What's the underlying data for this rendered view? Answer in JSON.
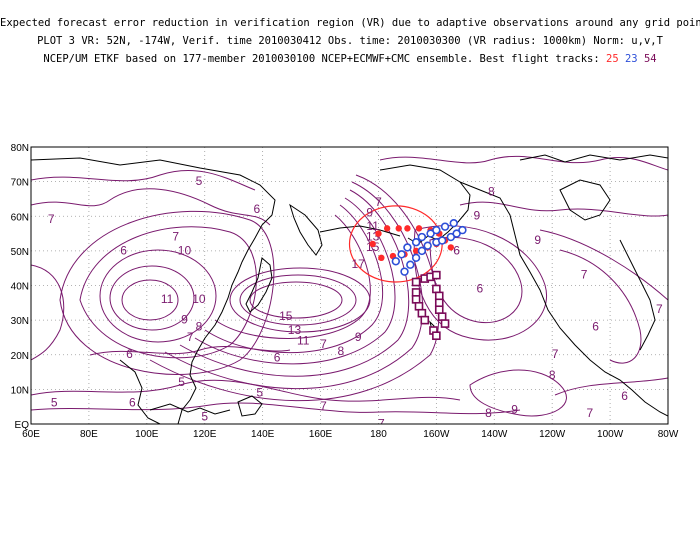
{
  "title": {
    "line1": "Expected forecast error reduction in verification region (VR) due to adaptive observations around any grid point.",
    "line2": "PLOT 3 VR: 52N, -174W, Verif. time 2010030412 Obs. time: 2010030300 (VR radius: 1000km) Norm: u,v,T",
    "line3_prefix": "NCEP/UM ETKF based on 177-member 2010030100 NCEP+ECMWF+CMC ensemble. Best flight tracks:",
    "track_a": "25",
    "track_b": "23",
    "track_c": "54"
  },
  "colors": {
    "contour": "#7a1a6e",
    "track_a": "#ff2a2a",
    "track_b": "#2d4fd8",
    "track_c": "#7a0a58",
    "vr_circle": "#ff2a2a",
    "grid": "#9a9a9a"
  },
  "axes": {
    "lon_labels": [
      "60E",
      "80E",
      "100E",
      "120E",
      "140E",
      "160E",
      "180",
      "160W",
      "140W",
      "120W",
      "100W",
      "80W"
    ],
    "lat_labels": [
      "80N",
      "70N",
      "60N",
      "50N",
      "40N",
      "30N",
      "20N",
      "10N",
      "EQ"
    ]
  },
  "contour_labels": [
    {
      "text": "7",
      "lon": 67,
      "lat": 58
    },
    {
      "text": "5",
      "lon": 118,
      "lat": 69
    },
    {
      "text": "6",
      "lon": 138,
      "lat": 61
    },
    {
      "text": "6",
      "lon": 92,
      "lat": 49
    },
    {
      "text": "7",
      "lon": 110,
      "lat": 53
    },
    {
      "text": "10",
      "lon": 113,
      "lat": 49
    },
    {
      "text": "11",
      "lon": 107,
      "lat": 35
    },
    {
      "text": "10",
      "lon": 118,
      "lat": 35
    },
    {
      "text": "9",
      "lon": 113,
      "lat": 29
    },
    {
      "text": "8",
      "lon": 118,
      "lat": 27
    },
    {
      "text": "7",
      "lon": 115,
      "lat": 24
    },
    {
      "text": "6",
      "lon": 94,
      "lat": 19
    },
    {
      "text": "5",
      "lon": 112,
      "lat": 11
    },
    {
      "text": "5",
      "lon": 68,
      "lat": 5
    },
    {
      "text": "6",
      "lon": 95,
      "lat": 5
    },
    {
      "text": "5",
      "lon": 120,
      "lat": 1
    },
    {
      "text": "5",
      "lon": 139,
      "lat": 8
    },
    {
      "text": "7",
      "lon": 161,
      "lat": 4
    },
    {
      "text": "7",
      "lon": 181,
      "lat": -1
    },
    {
      "text": "6",
      "lon": 145,
      "lat": 18
    },
    {
      "text": "15",
      "lon": 148,
      "lat": 30
    },
    {
      "text": "13",
      "lon": 151,
      "lat": 26
    },
    {
      "text": "11",
      "lon": 154,
      "lat": 23
    },
    {
      "text": "9",
      "lon": 173,
      "lat": 24
    },
    {
      "text": "8",
      "lon": 167,
      "lat": 20
    },
    {
      "text": "7",
      "lon": 161,
      "lat": 22
    },
    {
      "text": "7",
      "lon": 180,
      "lat": 63
    },
    {
      "text": "9",
      "lon": 177,
      "lat": 60
    },
    {
      "text": "11",
      "lon": 178,
      "lat": 56
    },
    {
      "text": "13",
      "lon": 178,
      "lat": 53
    },
    {
      "text": "15",
      "lon": 178,
      "lat": 50
    },
    {
      "text": "17",
      "lon": 173,
      "lat": 45
    },
    {
      "text": "8",
      "lon": 219,
      "lat": 66
    },
    {
      "text": "9",
      "lon": 214,
      "lat": 59
    },
    {
      "text": "9",
      "lon": 235,
      "lat": 52
    },
    {
      "text": "6",
      "lon": 207,
      "lat": 49
    },
    {
      "text": "6",
      "lon": 215,
      "lat": 38
    },
    {
      "text": "7",
      "lon": 251,
      "lat": 42
    },
    {
      "text": "7",
      "lon": 277,
      "lat": 32
    },
    {
      "text": "6",
      "lon": 255,
      "lat": 27
    },
    {
      "text": "7",
      "lon": 241,
      "lat": 19
    },
    {
      "text": "8",
      "lon": 240,
      "lat": 13
    },
    {
      "text": "6",
      "lon": 265,
      "lat": 7
    },
    {
      "text": "9",
      "lon": 227,
      "lat": 3
    },
    {
      "text": "8",
      "lon": 218,
      "lat": 2
    },
    {
      "text": "7",
      "lon": 253,
      "lat": 2
    }
  ],
  "verification_region": {
    "center_lon": 186,
    "center_lat": 52,
    "radius_lon": 16,
    "radius_lat": 11
  },
  "track_a_points": [
    [
      178,
      52
    ],
    [
      180,
      55
    ],
    [
      183,
      56.5
    ],
    [
      187,
      56.5
    ],
    [
      190,
      56.5
    ],
    [
      194,
      56.5
    ],
    [
      198,
      56
    ],
    [
      201,
      55
    ],
    [
      203,
      53
    ],
    [
      205,
      51
    ],
    [
      181,
      48
    ],
    [
      185,
      48.5
    ],
    [
      189,
      49
    ],
    [
      193,
      50
    ],
    [
      197,
      51
    ],
    [
      200,
      52
    ]
  ],
  "track_b_points": [
    [
      189,
      44
    ],
    [
      191,
      46
    ],
    [
      193,
      48
    ],
    [
      195,
      50
    ],
    [
      197,
      51.5
    ],
    [
      200,
      52.5
    ],
    [
      202,
      53
    ],
    [
      205,
      54
    ],
    [
      207,
      55
    ],
    [
      209,
      56
    ],
    [
      186,
      47
    ],
    [
      188,
      49
    ],
    [
      190,
      51
    ],
    [
      193,
      52.5
    ],
    [
      195,
      54
    ],
    [
      198,
      55
    ],
    [
      200,
      56
    ],
    [
      203,
      57
    ],
    [
      206,
      58
    ]
  ],
  "track_c_points": [
    [
      193,
      41
    ],
    [
      196,
      42
    ],
    [
      198,
      42.5
    ],
    [
      200,
      43
    ],
    [
      193,
      38
    ],
    [
      193,
      36
    ],
    [
      194,
      34
    ],
    [
      195,
      32
    ],
    [
      196,
      30
    ],
    [
      200,
      39
    ],
    [
      201,
      37
    ],
    [
      201,
      35
    ],
    [
      201,
      33
    ],
    [
      202,
      31
    ],
    [
      203,
      29
    ],
    [
      199,
      27
    ],
    [
      200,
      25.5
    ]
  ]
}
